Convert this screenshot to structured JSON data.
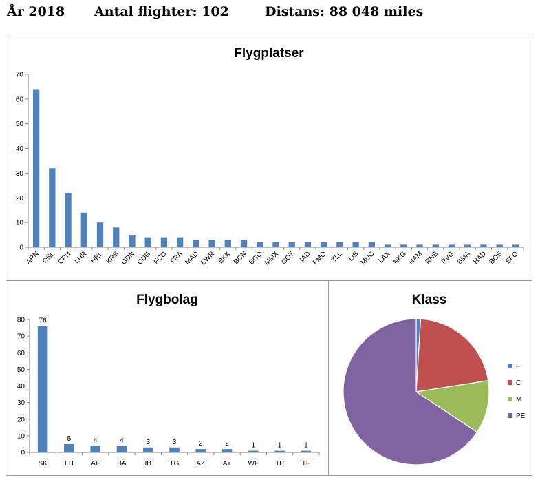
{
  "header": {
    "year": "År 2018",
    "flights": "Antal flighter: 102",
    "distance": "Distans: 88 048 miles"
  },
  "colors": {
    "bar": "#4F81BD",
    "axis": "#868686",
    "pie": [
      "#4F81BD",
      "#C0504D",
      "#9BBB59",
      "#8064A2"
    ]
  },
  "chart_data": [
    {
      "type": "bar",
      "title": "Flygplatser",
      "categories": [
        "ARN",
        "OSL",
        "CPH",
        "LHR",
        "HEL",
        "KRS",
        "GDN",
        "CDG",
        "FCO",
        "FRA",
        "MAD",
        "EWR",
        "BKK",
        "BCN",
        "BGO",
        "MMX",
        "GOT",
        "IAD",
        "PMO",
        "TLL",
        "LIS",
        "MUC",
        "LAX",
        "NKG",
        "HAM",
        "RNB",
        "PVG",
        "BMA",
        "HAD",
        "BOS",
        "SFO"
      ],
      "values": [
        64,
        32,
        22,
        14,
        10,
        8,
        5,
        4,
        4,
        4,
        3,
        3,
        3,
        3,
        2,
        2,
        2,
        2,
        2,
        2,
        2,
        2,
        1,
        1,
        1,
        1,
        1,
        1,
        1,
        1,
        1
      ],
      "ylim": [
        0,
        70
      ],
      "yticks": [
        0,
        10,
        20,
        30,
        40,
        50,
        60,
        70
      ],
      "xlabel": "",
      "ylabel": "",
      "legend": "none"
    },
    {
      "type": "bar",
      "title": "Flygbolag",
      "categories": [
        "SK",
        "LH",
        "AF",
        "BA",
        "IB",
        "TG",
        "AZ",
        "AY",
        "WF",
        "TP",
        "TF"
      ],
      "values": [
        76,
        5,
        4,
        4,
        3,
        3,
        2,
        2,
        1,
        1,
        1
      ],
      "data_labels": true,
      "ylim": [
        0,
        80
      ],
      "yticks": [
        0,
        10,
        20,
        30,
        40,
        50,
        60,
        70,
        80
      ],
      "xlabel": "",
      "ylabel": "",
      "legend": "none"
    },
    {
      "type": "pie",
      "title": "Klass",
      "categories": [
        "F",
        "C",
        "M",
        "PE"
      ],
      "values": [
        1,
        22,
        12,
        67
      ],
      "legend": "right"
    }
  ]
}
